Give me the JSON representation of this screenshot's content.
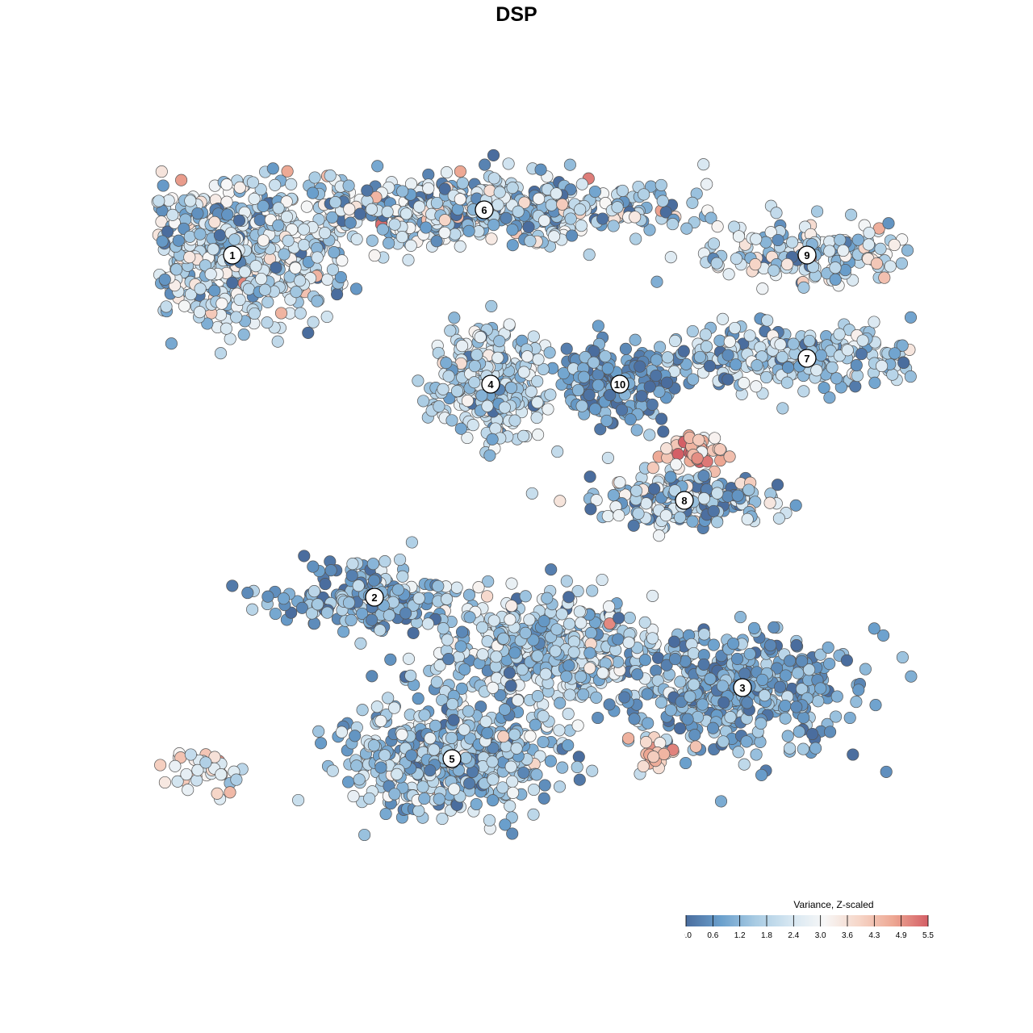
{
  "chart_data": {
    "type": "scatter",
    "title": "DSP",
    "xlabel": "",
    "ylabel": "",
    "grid": false,
    "color_scale": {
      "title": "Variance, Z-scaled",
      "min": 0.0,
      "max": 5.5,
      "ticks": [
        "0.0",
        "0.6",
        "1.2",
        "1.8",
        "2.4",
        "3.0",
        "3.6",
        "4.3",
        "4.9",
        "5.5"
      ],
      "stops": [
        "#4a6d9e",
        "#6a9fcc",
        "#a8cbe3",
        "#d5e6f1",
        "#f7f7f7",
        "#f6d6c8",
        "#eda793",
        "#d45f66"
      ],
      "legend_placement": "bottom-right"
    },
    "clusters": [
      {
        "label": "1",
        "x": -4.4,
        "y": 3.8,
        "sx": 1.5,
        "sy": 0.95,
        "n": 620,
        "mean": 1.9,
        "sd": 1.0
      },
      {
        "label": "2",
        "x": -2.2,
        "y": -1.5,
        "sx": 1.4,
        "sy": 0.5,
        "n": 190,
        "mean": 1.0,
        "sd": 0.8
      },
      {
        "label": "3",
        "x": 3.5,
        "y": -2.9,
        "sx": 1.6,
        "sy": 0.8,
        "n": 420,
        "mean": 0.9,
        "sd": 0.6
      },
      {
        "label": "4",
        "x": -0.4,
        "y": 1.8,
        "sx": 0.8,
        "sy": 0.75,
        "n": 300,
        "mean": 1.9,
        "sd": 0.8
      },
      {
        "label": "5",
        "x": -1.0,
        "y": -4.0,
        "sx": 1.4,
        "sy": 0.8,
        "n": 520,
        "mean": 1.5,
        "sd": 0.9
      },
      {
        "label": "6",
        "x": -0.5,
        "y": 4.5,
        "sx": 2.7,
        "sy": 0.45,
        "n": 520,
        "mean": 1.8,
        "sd": 1.2
      },
      {
        "label": "7",
        "x": 4.5,
        "y": 2.2,
        "sx": 2.2,
        "sy": 0.45,
        "n": 260,
        "mean": 1.6,
        "sd": 0.9
      },
      {
        "label": "8",
        "x": 2.6,
        "y": 0.0,
        "sx": 1.2,
        "sy": 0.4,
        "n": 200,
        "mean": 1.7,
        "sd": 1.2
      },
      {
        "label": "9",
        "x": 4.5,
        "y": 3.8,
        "sx": 1.4,
        "sy": 0.4,
        "n": 170,
        "mean": 2.0,
        "sd": 1.1
      },
      {
        "label": "10",
        "x": 1.6,
        "y": 1.8,
        "sx": 0.9,
        "sy": 0.6,
        "n": 170,
        "mean": 0.5,
        "sd": 0.5
      },
      {
        "label": "",
        "x": 0.5,
        "y": -2.3,
        "sx": 1.5,
        "sy": 0.8,
        "n": 440,
        "mean": 1.8,
        "sd": 0.9
      },
      {
        "label": "",
        "x": -4.8,
        "y": -4.2,
        "sx": 0.6,
        "sy": 0.3,
        "n": 40,
        "mean": 3.0,
        "sd": 1.2
      },
      {
        "label": "",
        "x": 2.8,
        "y": 0.8,
        "sx": 0.5,
        "sy": 0.25,
        "n": 45,
        "mean": 4.3,
        "sd": 0.8
      },
      {
        "label": "",
        "x": 2.1,
        "y": -3.9,
        "sx": 0.4,
        "sy": 0.2,
        "n": 22,
        "mean": 4.1,
        "sd": 0.6
      }
    ]
  }
}
